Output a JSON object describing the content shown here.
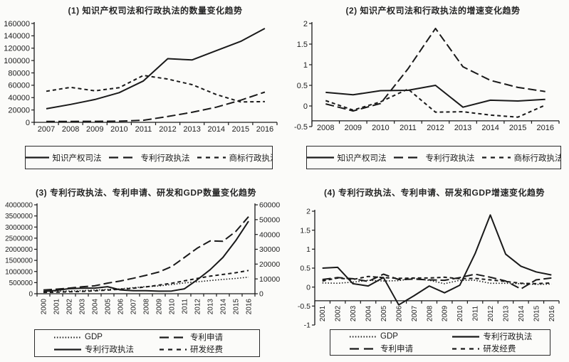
{
  "page": {
    "background": "#fbfbf9",
    "ink": "#1a1a1a"
  },
  "chart_data": [
    {
      "id": "chart-1",
      "type": "line",
      "title": "(1) 知识产权司法和行政执法的数量变化趋势",
      "categories": [
        "2007",
        "2008",
        "2009",
        "2010",
        "2011",
        "2012",
        "2013",
        "2014",
        "2015",
        "2016"
      ],
      "y_axis": {
        "min": 0,
        "max": 160000,
        "ticks": [
          0,
          20000,
          40000,
          60000,
          80000,
          100000,
          120000,
          140000,
          160000
        ]
      },
      "series": [
        {
          "name": "知识产权司法",
          "style": "solid",
          "values": [
            22000,
            29000,
            37000,
            48000,
            67000,
            103000,
            101000,
            116000,
            131000,
            152000
          ]
        },
        {
          "name": "专利行政执法",
          "style": "long-dash",
          "values": [
            1500,
            1500,
            1600,
            1800,
            3300,
            9400,
            16200,
            24500,
            35800,
            48900
          ]
        },
        {
          "name": "商标行政执法",
          "style": "short-dash",
          "values": [
            50300,
            56600,
            51000,
            56000,
            76000,
            70000,
            61000,
            45000,
            33000,
            33500
          ]
        }
      ],
      "legend": [
        "知识产权司法",
        "专利行政执法",
        "商标行政执法"
      ]
    },
    {
      "id": "chart-2",
      "type": "line",
      "title": "(2) 知识产权司法和行政执法的增速变化趋势",
      "categories": [
        "2008",
        "2009",
        "2010",
        "2011",
        "2012",
        "2013",
        "2014",
        "2015",
        "2016"
      ],
      "y_axis": {
        "min": -0.5,
        "max": 2,
        "ticks": [
          -0.5,
          0,
          0.5,
          1,
          1.5,
          2
        ]
      },
      "axis_cross": -0.36,
      "series": [
        {
          "name": "知识产权司法",
          "style": "solid",
          "values": [
            0.33,
            0.27,
            0.37,
            0.38,
            0.5,
            -0.03,
            0.14,
            0.12,
            0.16
          ]
        },
        {
          "name": "专利行政执法",
          "style": "long-dash",
          "values": [
            0.05,
            -0.12,
            0.06,
            0.9,
            1.88,
            0.95,
            0.62,
            0.45,
            0.35
          ]
        },
        {
          "name": "商标行政执法",
          "style": "short-dash",
          "values": [
            0.13,
            -0.1,
            0.1,
            0.41,
            -0.15,
            -0.14,
            -0.22,
            -0.27,
            0.02
          ]
        }
      ],
      "legend": [
        "知识产权司法",
        "专利行政执法",
        "商标行政执法"
      ]
    },
    {
      "id": "chart-3",
      "type": "line",
      "title": "(3) 专利行政执法、专利申请、研发和GDP数量变化趋势",
      "categories": [
        "2000",
        "2001",
        "2002",
        "2003",
        "2004",
        "2005",
        "2006",
        "2007",
        "2008",
        "2009",
        "2010",
        "2011",
        "2012",
        "2013",
        "2014",
        "2015",
        "2016"
      ],
      "y_left": {
        "min": 0,
        "max": 4000000,
        "ticks": [
          0,
          500000,
          1000000,
          1500000,
          2000000,
          2500000,
          3000000,
          3500000,
          4000000
        ]
      },
      "y_right": {
        "min": 0,
        "max": 60000,
        "ticks": [
          0,
          10000,
          20000,
          30000,
          40000,
          50000,
          60000
        ]
      },
      "series": [
        {
          "name": "GDP",
          "style": "dotted",
          "axis": "left",
          "values": [
            100280,
            110863,
            121717,
            137422,
            161840,
            187319,
            219439,
            270092,
            319245,
            348518,
            412119,
            487940,
            538580,
            592963,
            643563,
            688858,
            744127
          ]
        },
        {
          "name": "专利申请",
          "style": "long-dash",
          "axis": "left",
          "values": [
            170000,
            204000,
            253000,
            309000,
            354000,
            476000,
            573000,
            694000,
            828000,
            977000,
            1222000,
            1633000,
            2051000,
            2377000,
            2361000,
            2799000,
            3465000
          ]
        },
        {
          "name": "专利行政执法",
          "style": "solid",
          "axis": "right",
          "values": [
            1500,
            2250,
            3400,
            3700,
            3800,
            4750,
            2600,
            2000,
            2050,
            1750,
            1840,
            3300,
            9400,
            16200,
            24500,
            35800,
            48900
          ]
        },
        {
          "name": "研发经费",
          "style": "short-dash",
          "axis": "right",
          "values": [
            896,
            1042,
            1288,
            1540,
            1966,
            2450,
            3003,
            3710,
            4616,
            5802,
            7063,
            8687,
            10298,
            11847,
            13016,
            14170,
            15677
          ]
        }
      ],
      "legend": [
        "GDP",
        "专利申请",
        "专利行政执法",
        "研发经费"
      ]
    },
    {
      "id": "chart-4",
      "type": "line",
      "title": "(4) 专利行政执法、专利申请、研发和GDP增速变化趋势",
      "categories": [
        "2001",
        "2002",
        "2003",
        "2004",
        "2005",
        "2006",
        "2007",
        "2008",
        "2009",
        "2010",
        "2011",
        "2012",
        "2013",
        "2014",
        "2015",
        "2016"
      ],
      "y_axis": {
        "min": -1,
        "max": 2,
        "ticks": [
          -1,
          -0.5,
          0,
          0.5,
          1,
          1.5,
          2
        ]
      },
      "axis_cross": -0.36,
      "series": [
        {
          "name": "GDP",
          "style": "dotted",
          "values": [
            0.11,
            0.1,
            0.13,
            0.18,
            0.16,
            0.17,
            0.23,
            0.18,
            0.09,
            0.18,
            0.18,
            0.1,
            0.1,
            0.09,
            0.07,
            0.08
          ]
        },
        {
          "name": "专利行政执法",
          "style": "solid",
          "values": [
            0.5,
            0.52,
            0.09,
            0.03,
            0.25,
            -0.47,
            -0.23,
            0.03,
            -0.15,
            0.05,
            0.88,
            1.9,
            0.87,
            0.55,
            0.4,
            0.32
          ]
        },
        {
          "name": "专利申请",
          "style": "long-dash",
          "values": [
            0.2,
            0.25,
            0.22,
            0.15,
            0.34,
            0.2,
            0.21,
            0.19,
            0.18,
            0.25,
            0.34,
            0.26,
            0.16,
            -0.05,
            0.19,
            0.24
          ]
        },
        {
          "name": "研发经费",
          "style": "short-dash",
          "values": [
            0.16,
            0.24,
            0.2,
            0.28,
            0.25,
            0.23,
            0.24,
            0.24,
            0.26,
            0.22,
            0.23,
            0.19,
            0.15,
            0.1,
            0.09,
            0.11
          ]
        }
      ],
      "legend": [
        "GDP",
        "专利行政执法",
        "专利申请",
        "研发经费"
      ]
    }
  ]
}
